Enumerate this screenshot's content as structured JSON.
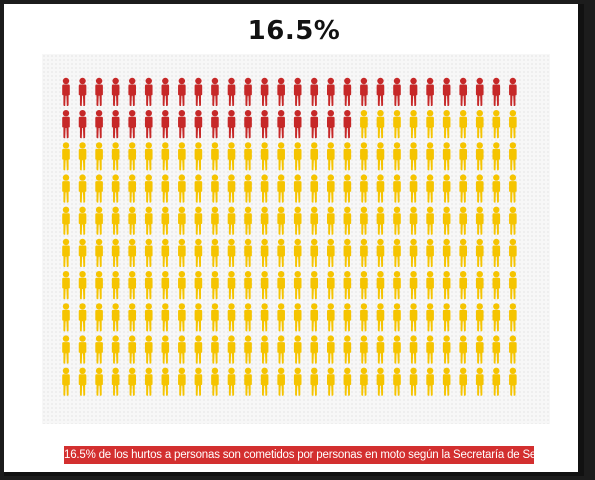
{
  "title": "16.5%",
  "caption": "16.5% de los hurtos a personas son cometidos por personas en moto según la Secretaría de Seguridad",
  "chart_data": {
    "type": "pictograph",
    "total_icons": 280,
    "highlighted_icons": 46,
    "highlighted_percent": 16.5,
    "grid_columns": 28,
    "grid_rows": 10,
    "icon": "person-icon",
    "colors": {
      "highlighted": "#c62828",
      "rest": "#f5c400"
    }
  }
}
